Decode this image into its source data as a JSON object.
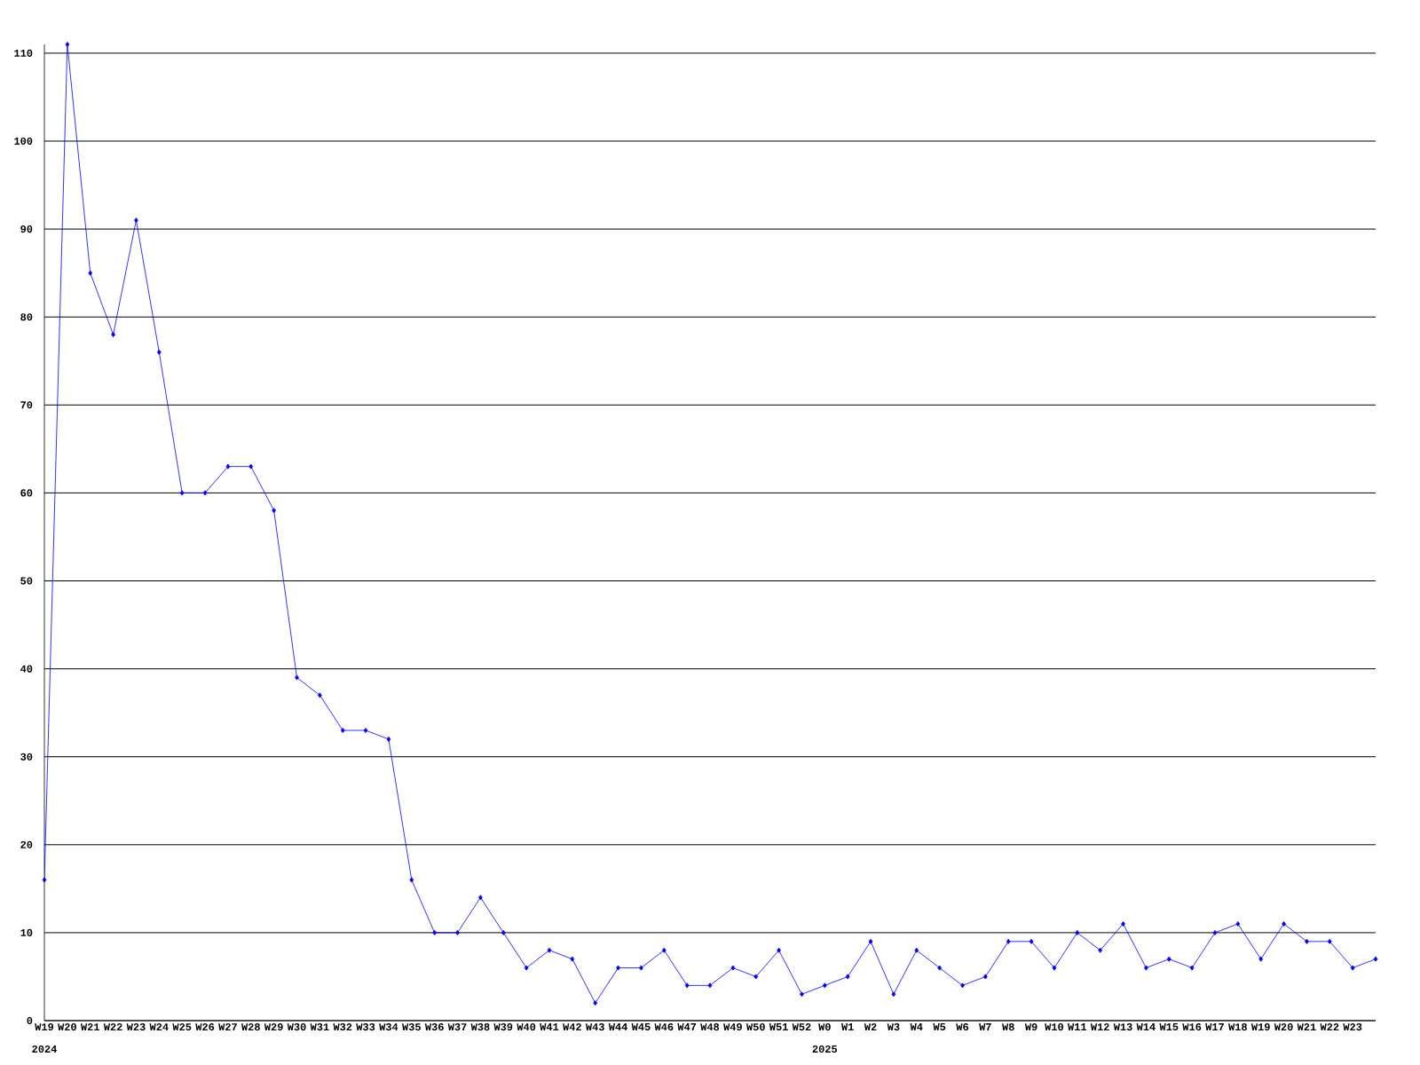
{
  "chart_data": {
    "type": "line",
    "categories": [
      "W19",
      "W20",
      "W21",
      "W22",
      "W23",
      "W24",
      "W25",
      "W26",
      "W27",
      "W28",
      "W29",
      "W30",
      "W31",
      "W32",
      "W33",
      "W34",
      "W35",
      "W36",
      "W37",
      "W38",
      "W39",
      "W40",
      "W41",
      "W42",
      "W43",
      "W44",
      "W45",
      "W46",
      "W47",
      "W48",
      "W49",
      "W50",
      "W51",
      "W52",
      "W0",
      "W1",
      "W2",
      "W3",
      "W4",
      "W5",
      "W6",
      "W7",
      "W8",
      "W9",
      "W10",
      "W11",
      "W12",
      "W13",
      "W14",
      "W15",
      "W16",
      "W17",
      "W18",
      "W19",
      "W20",
      "W21",
      "W22",
      "W23",
      null
    ],
    "series": [
      {
        "color": "#0000ff",
        "values": [
          16,
          111,
          85,
          78,
          91,
          76,
          60,
          60,
          63,
          63,
          58,
          39,
          37,
          33,
          33,
          32,
          16,
          10,
          10,
          14,
          10,
          6,
          8,
          7,
          2,
          6,
          6,
          8,
          4,
          4,
          6,
          5,
          8,
          3,
          4,
          5,
          9,
          3,
          8,
          6,
          4,
          5,
          9,
          9,
          6,
          10,
          8,
          11,
          6,
          7,
          6,
          10,
          11,
          7,
          11,
          9,
          9,
          6,
          7
        ]
      }
    ],
    "ylim": [
      0,
      111
    ],
    "yticks": [
      0,
      10,
      20,
      30,
      40,
      50,
      60,
      70,
      80,
      90,
      100,
      110
    ],
    "grid": "y",
    "marker": "diamond",
    "line_style": "solid",
    "annotations": [
      "2024",
      "2025"
    ]
  }
}
